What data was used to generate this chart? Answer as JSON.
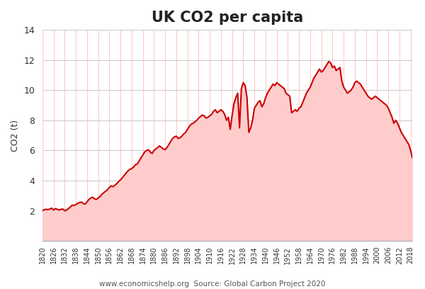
{
  "title": "UK CO2 per capita",
  "ylabel": "CO2 (t)",
  "source_text": "www.economicshelp.org  Source: Global Carbon Project 2020",
  "xlim": [
    1820,
    2019
  ],
  "ylim": [
    0,
    14
  ],
  "yticks": [
    0,
    2,
    4,
    6,
    8,
    10,
    12,
    14
  ],
  "xticks": [
    1820,
    1826,
    1832,
    1838,
    1844,
    1850,
    1856,
    1862,
    1868,
    1874,
    1880,
    1886,
    1892,
    1898,
    1904,
    1910,
    1916,
    1922,
    1928,
    1934,
    1940,
    1946,
    1952,
    1958,
    1964,
    1970,
    1976,
    1982,
    1988,
    1994,
    2000,
    2006,
    2012,
    2018
  ],
  "line_color": "#cc0000",
  "fill_color": "#ffcccc",
  "vgrid_color": "#ffbbbb",
  "hgrid_color": "#cccccc",
  "background_color": "#ffffff",
  "title_fontsize": 15,
  "source_fontsize": 7.5,
  "years": [
    1820,
    1821,
    1822,
    1823,
    1824,
    1825,
    1826,
    1827,
    1828,
    1829,
    1830,
    1831,
    1832,
    1833,
    1834,
    1835,
    1836,
    1837,
    1838,
    1839,
    1840,
    1841,
    1842,
    1843,
    1844,
    1845,
    1846,
    1847,
    1848,
    1849,
    1850,
    1851,
    1852,
    1853,
    1854,
    1855,
    1856,
    1857,
    1858,
    1859,
    1860,
    1861,
    1862,
    1863,
    1864,
    1865,
    1866,
    1867,
    1868,
    1869,
    1870,
    1871,
    1872,
    1873,
    1874,
    1875,
    1876,
    1877,
    1878,
    1879,
    1880,
    1881,
    1882,
    1883,
    1884,
    1885,
    1886,
    1887,
    1888,
    1889,
    1890,
    1891,
    1892,
    1893,
    1894,
    1895,
    1896,
    1897,
    1898,
    1899,
    1900,
    1901,
    1902,
    1903,
    1904,
    1905,
    1906,
    1907,
    1908,
    1909,
    1910,
    1911,
    1912,
    1913,
    1914,
    1915,
    1916,
    1917,
    1918,
    1919,
    1920,
    1921,
    1922,
    1923,
    1924,
    1925,
    1926,
    1927,
    1928,
    1929,
    1930,
    1931,
    1932,
    1933,
    1934,
    1935,
    1936,
    1937,
    1938,
    1939,
    1940,
    1941,
    1942,
    1943,
    1944,
    1945,
    1946,
    1947,
    1948,
    1949,
    1950,
    1951,
    1952,
    1953,
    1954,
    1955,
    1956,
    1957,
    1958,
    1959,
    1960,
    1961,
    1962,
    1963,
    1964,
    1965,
    1966,
    1967,
    1968,
    1969,
    1970,
    1971,
    1972,
    1973,
    1974,
    1975,
    1976,
    1977,
    1978,
    1979,
    1980,
    1981,
    1982,
    1983,
    1984,
    1985,
    1986,
    1987,
    1988,
    1989,
    1990,
    1991,
    1992,
    1993,
    1994,
    1995,
    1996,
    1997,
    1998,
    1999,
    2000,
    2001,
    2002,
    2003,
    2004,
    2005,
    2006,
    2007,
    2008,
    2009,
    2010,
    2011,
    2012,
    2013,
    2014,
    2015,
    2016,
    2017,
    2018,
    2019
  ],
  "values": [
    2.0,
    2.08,
    2.1,
    2.08,
    2.12,
    2.18,
    2.05,
    2.15,
    2.1,
    2.05,
    2.1,
    2.12,
    2.0,
    2.05,
    2.15,
    2.25,
    2.38,
    2.35,
    2.42,
    2.5,
    2.55,
    2.58,
    2.48,
    2.45,
    2.6,
    2.75,
    2.85,
    2.9,
    2.8,
    2.75,
    2.85,
    2.95,
    3.1,
    3.2,
    3.3,
    3.4,
    3.55,
    3.65,
    3.6,
    3.7,
    3.8,
    3.95,
    4.05,
    4.2,
    4.35,
    4.5,
    4.65,
    4.75,
    4.8,
    4.9,
    5.05,
    5.1,
    5.3,
    5.5,
    5.7,
    5.9,
    6.0,
    6.05,
    5.9,
    5.8,
    6.0,
    6.1,
    6.2,
    6.3,
    6.2,
    6.1,
    6.05,
    6.2,
    6.4,
    6.6,
    6.8,
    6.9,
    6.95,
    6.8,
    6.85,
    6.95,
    7.1,
    7.2,
    7.4,
    7.6,
    7.75,
    7.8,
    7.9,
    8.0,
    8.15,
    8.25,
    8.35,
    8.3,
    8.15,
    8.2,
    8.3,
    8.4,
    8.6,
    8.7,
    8.5,
    8.6,
    8.7,
    8.6,
    8.4,
    8.0,
    8.2,
    7.4,
    8.3,
    9.1,
    9.5,
    9.8,
    7.5,
    10.1,
    10.5,
    10.3,
    9.5,
    7.2,
    7.5,
    8.0,
    8.8,
    9.0,
    9.2,
    9.3,
    8.9,
    9.1,
    9.5,
    9.8,
    10.0,
    10.2,
    10.4,
    10.3,
    10.5,
    10.4,
    10.3,
    10.2,
    10.1,
    9.8,
    9.7,
    9.6,
    8.5,
    8.6,
    8.7,
    8.6,
    8.8,
    8.9,
    9.2,
    9.5,
    9.8,
    10.0,
    10.2,
    10.5,
    10.8,
    11.0,
    11.2,
    11.4,
    11.2,
    11.3,
    11.5,
    11.7,
    11.9,
    11.8,
    11.5,
    11.6,
    11.3,
    11.4,
    11.5,
    10.6,
    10.2,
    10.0,
    9.8,
    9.9,
    10.0,
    10.2,
    10.5,
    10.6,
    10.5,
    10.4,
    10.2,
    10.0,
    9.8,
    9.6,
    9.5,
    9.4,
    9.5,
    9.6,
    9.5,
    9.4,
    9.3,
    9.2,
    9.1,
    9.0,
    8.8,
    8.5,
    8.2,
    7.8,
    8.0,
    7.8,
    7.5,
    7.2,
    7.0,
    6.8,
    6.6,
    6.4,
    6.0,
    5.5
  ]
}
